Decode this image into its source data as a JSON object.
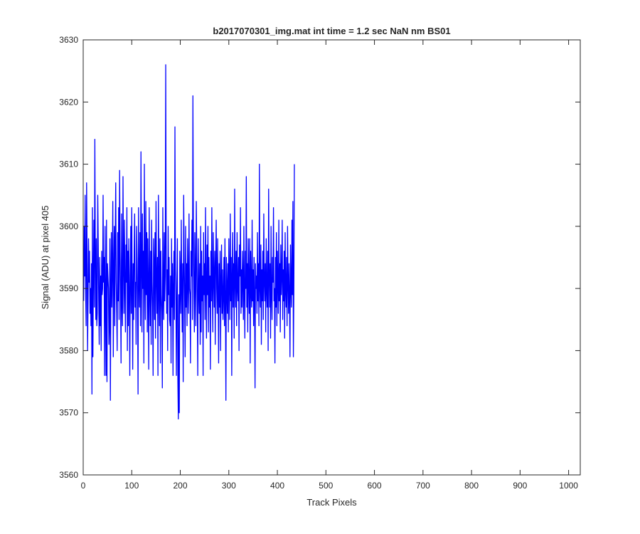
{
  "chart_data": {
    "type": "line",
    "title": "b2017070301_img.mat int time = 1.2 sec  NaN nm BS01",
    "xlabel": "Track Pixels",
    "ylabel": "Signal (ADU) at pixel 405",
    "xlim": [
      0,
      1024
    ],
    "ylim": [
      3560,
      3630
    ],
    "xticks": [
      0,
      100,
      200,
      300,
      400,
      500,
      600,
      700,
      800,
      900,
      1000
    ],
    "yticks": [
      3560,
      3570,
      3580,
      3590,
      3600,
      3610,
      3620,
      3630
    ],
    "xtick_labels": [
      "0",
      "100",
      "200",
      "300",
      "400",
      "500",
      "600",
      "700",
      "800",
      "900",
      "1000"
    ],
    "ytick_labels": [
      "3560",
      "3570",
      "3580",
      "3590",
      "3600",
      "3610",
      "3620",
      "3630"
    ],
    "grid": false,
    "series": [
      {
        "color": "#0000ff",
        "x_start": 1,
        "x_step": 1,
        "values": [
          3588,
          3600,
          3592,
          3605,
          3590,
          3584,
          3607,
          3596,
          3580,
          3588,
          3598,
          3591,
          3596,
          3586,
          3590,
          3584,
          3594,
          3573,
          3603,
          3579,
          3592,
          3601,
          3587,
          3614,
          3595,
          3585,
          3598,
          3584,
          3586,
          3605,
          3597,
          3588,
          3581,
          3595,
          3584,
          3592,
          3580,
          3596,
          3589,
          3590,
          3605,
          3591,
          3595,
          3576,
          3600,
          3588,
          3576,
          3601,
          3575,
          3594,
          3592,
          3590,
          3581,
          3584,
          3598,
          3572,
          3590,
          3599,
          3587,
          3594,
          3604,
          3579,
          3592,
          3600,
          3584,
          3598,
          3607,
          3591,
          3586,
          3580,
          3599,
          3588,
          3603,
          3585,
          3609,
          3596,
          3589,
          3578,
          3602,
          3588,
          3584,
          3608,
          3594,
          3586,
          3601,
          3590,
          3583,
          3597,
          3591,
          3603,
          3580,
          3596,
          3584,
          3598,
          3590,
          3576,
          3592,
          3600,
          3586,
          3603,
          3590,
          3577,
          3594,
          3585,
          3596,
          3602,
          3587,
          3591,
          3581,
          3600,
          3595,
          3588,
          3573,
          3603,
          3592,
          3587,
          3599,
          3584,
          3612,
          3594,
          3583,
          3602,
          3590,
          3596,
          3578,
          3610,
          3592,
          3585,
          3604,
          3589,
          3599,
          3583,
          3598,
          3590,
          3577,
          3603,
          3590,
          3584,
          3596,
          3581,
          3601,
          3591,
          3587,
          3576,
          3598,
          3594,
          3585,
          3599,
          3582,
          3604,
          3592,
          3586,
          3595,
          3576,
          3605,
          3590,
          3584,
          3598,
          3578,
          3596,
          3589,
          3586,
          3574,
          3603,
          3590,
          3585,
          3599,
          3588,
          3592,
          3626,
          3597,
          3586,
          3593,
          3580,
          3600,
          3589,
          3595,
          3585,
          3584,
          3592,
          3578,
          3598,
          3587,
          3594,
          3576,
          3590,
          3596,
          3585,
          3616,
          3593,
          3588,
          3576,
          3591,
          3598,
          3575,
          3569,
          3589,
          3570,
          3596,
          3592,
          3586,
          3601,
          3590,
          3583,
          3594,
          3575,
          3605,
          3595,
          3588,
          3579,
          3600,
          3587,
          3594,
          3584,
          3598,
          3591,
          3586,
          3602,
          3590,
          3589,
          3578,
          3596,
          3592,
          3601,
          3585,
          3621,
          3600,
          3589,
          3583,
          3599,
          3592,
          3584,
          3604,
          3596,
          3587,
          3576,
          3598,
          3590,
          3586,
          3594,
          3581,
          3600,
          3583,
          3596,
          3588,
          3592,
          3576,
          3599,
          3589,
          3594,
          3585,
          3603,
          3590,
          3582,
          3597,
          3589,
          3600,
          3583,
          3595,
          3587,
          3592,
          3577,
          3596,
          3588,
          3603,
          3590,
          3583,
          3599,
          3592,
          3587,
          3596,
          3581,
          3594,
          3601,
          3590,
          3586,
          3598,
          3589,
          3578,
          3594,
          3587,
          3596,
          3580,
          3591,
          3597,
          3586,
          3593,
          3585,
          3589,
          3595,
          3584,
          3598,
          3588,
          3572,
          3595,
          3590,
          3586,
          3594,
          3583,
          3598,
          3591,
          3585,
          3602,
          3588,
          3595,
          3576,
          3592,
          3599,
          3587,
          3594,
          3582,
          3606,
          3591,
          3587,
          3596,
          3584,
          3599,
          3590,
          3588,
          3595,
          3580,
          3597,
          3592,
          3603,
          3586,
          3593,
          3587,
          3596,
          3591,
          3585,
          3600,
          3589,
          3582,
          3596,
          3590,
          3608,
          3587,
          3594,
          3583,
          3598,
          3591,
          3586,
          3598,
          3578,
          3596,
          3590,
          3587,
          3601,
          3588,
          3593,
          3584,
          3595,
          3589,
          3574,
          3594,
          3590,
          3592,
          3586,
          3599,
          3588,
          3594,
          3584,
          3610,
          3590,
          3587,
          3597,
          3581,
          3593,
          3588,
          3596,
          3585,
          3602,
          3591,
          3588,
          3594,
          3583,
          3598,
          3590,
          3587,
          3596,
          3580,
          3606,
          3592,
          3587,
          3594,
          3582,
          3600,
          3589,
          3585,
          3595,
          3591,
          3603,
          3588,
          3590,
          3578,
          3595,
          3587,
          3599,
          3584,
          3596,
          3591,
          3586,
          3601,
          3588,
          3594,
          3583,
          3597,
          3589,
          3592,
          3601,
          3585,
          3593,
          3588,
          3596,
          3582,
          3599,
          3590,
          3587,
          3595,
          3584,
          3600,
          3591,
          3586,
          3594,
          3589,
          3579,
          3597,
          3590,
          3587,
          3601,
          3589,
          3604,
          3579,
          3590,
          3610
        ]
      }
    ]
  }
}
